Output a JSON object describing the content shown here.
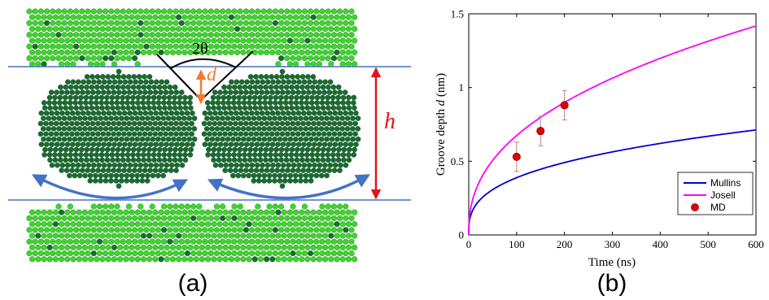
{
  "panel_a": {
    "label": "(a)",
    "angle_label": "2θ",
    "depth_label": "d",
    "height_label": "h",
    "colors": {
      "light_atom": "#3fd42e",
      "dark_atom": "#1a6b32",
      "boundary_line": "#4472c4",
      "depth_arrow": "#ed7d31",
      "height_arrow": "#e3141c",
      "flow_arrow": "#4472c4"
    }
  },
  "panel_b": {
    "label": "(b)",
    "chart_data": {
      "type": "line",
      "xlabel": "Time (ns)",
      "ylabel_prefix": "Groove depth ",
      "ylabel_var": "d",
      "ylabel_suffix": " (nm)",
      "xlim": [
        0,
        600
      ],
      "ylim": [
        0,
        1.5
      ],
      "xticks": [
        0,
        100,
        200,
        300,
        400,
        500,
        600
      ],
      "yticks": [
        0,
        0.5,
        1,
        1.5
      ],
      "ytick_labels": [
        "0",
        "0.5",
        "1",
        "1.5"
      ],
      "grid": false,
      "legend_position": "bottom-right",
      "series": [
        {
          "name": "Mullins",
          "kind": "line",
          "color": "#0000d0",
          "model": "power",
          "coef": 0.0818,
          "exponent": 0.3383
        },
        {
          "name": "Josell",
          "kind": "line",
          "color": "#ff00ff",
          "model": "power",
          "coef": 0.0998,
          "exponent": 0.4148
        },
        {
          "name": "MD",
          "kind": "scatter",
          "color": "#e00000",
          "x": [
            100,
            150,
            200
          ],
          "y": [
            0.53,
            0.705,
            0.88
          ],
          "err": [
            0.1,
            0.1,
            0.1
          ]
        }
      ]
    }
  }
}
